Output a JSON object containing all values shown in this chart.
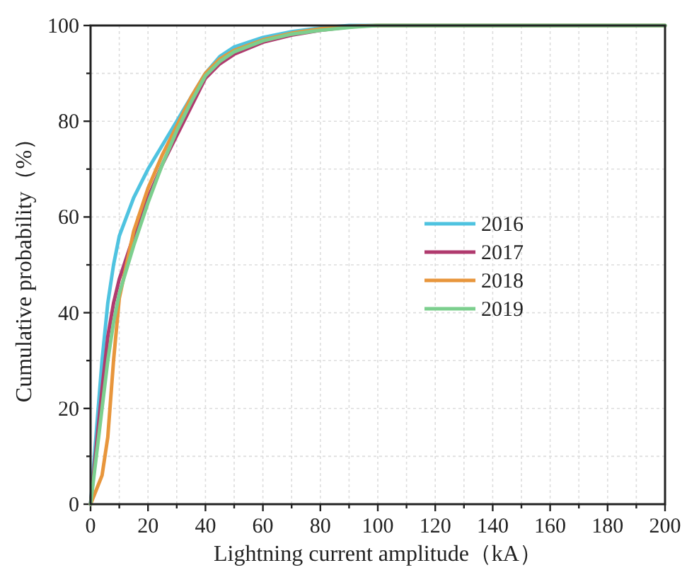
{
  "chart_data": {
    "type": "line",
    "xlabel": "Lightning current amplitude（kA）",
    "ylabel": "Cumulative probability（%）",
    "x": [
      0,
      2,
      4,
      6,
      8,
      10,
      15,
      20,
      25,
      30,
      35,
      40,
      45,
      50,
      60,
      70,
      80,
      90,
      100,
      200
    ],
    "series": [
      {
        "name": "2016",
        "color": "#4fc3e0",
        "values": [
          0,
          15,
          30,
          42,
          50,
          56,
          64,
          70,
          75,
          80,
          85,
          90,
          93.5,
          95.5,
          97.5,
          98.7,
          99.5,
          100,
          100,
          100
        ]
      },
      {
        "name": "2017",
        "color": "#b03a6e",
        "values": [
          0,
          12,
          24,
          35,
          42,
          47,
          56,
          64,
          71,
          77,
          83,
          89,
          92,
          94,
          96.5,
          98,
          99,
          99.7,
          null,
          null
        ]
      },
      {
        "name": "2018",
        "color": "#e8963c",
        "values": [
          0,
          3,
          6,
          14,
          30,
          43,
          57,
          66,
          73,
          79,
          85,
          90,
          93,
          94.8,
          97,
          98.4,
          99.3,
          99.8,
          100,
          100
        ]
      },
      {
        "name": "2019",
        "color": "#7ccf8e",
        "values": [
          0,
          10,
          20,
          30,
          38,
          44,
          54,
          63,
          71,
          78,
          84,
          89.5,
          92.5,
          94.5,
          96.8,
          98.2,
          99,
          99.6,
          100,
          100
        ]
      }
    ],
    "xlim": [
      0,
      200
    ],
    "ylim": [
      0,
      100
    ],
    "xticks": [
      0,
      {
        "value": 10,
        "label": null
      },
      20,
      {
        "value": 30,
        "label": null
      },
      40,
      {
        "value": 50,
        "label": null
      },
      60,
      {
        "value": 70,
        "label": null
      },
      80,
      {
        "value": 90,
        "label": null
      },
      100,
      {
        "value": 110,
        "label": null
      },
      120,
      {
        "value": 130,
        "label": null
      },
      140,
      {
        "value": 150,
        "label": null
      },
      160,
      {
        "value": 170,
        "label": null
      },
      180,
      {
        "value": 190,
        "label": null
      },
      200
    ],
    "yticks": [
      0,
      {
        "value": 10,
        "label": null
      },
      20,
      {
        "value": 30,
        "label": null
      },
      40,
      {
        "value": 50,
        "label": null
      },
      60,
      {
        "value": 70,
        "label": null
      },
      80,
      {
        "value": 90,
        "label": null
      },
      100
    ],
    "grid": true,
    "legend": "right",
    "marker": "none",
    "line_style": "solid"
  }
}
